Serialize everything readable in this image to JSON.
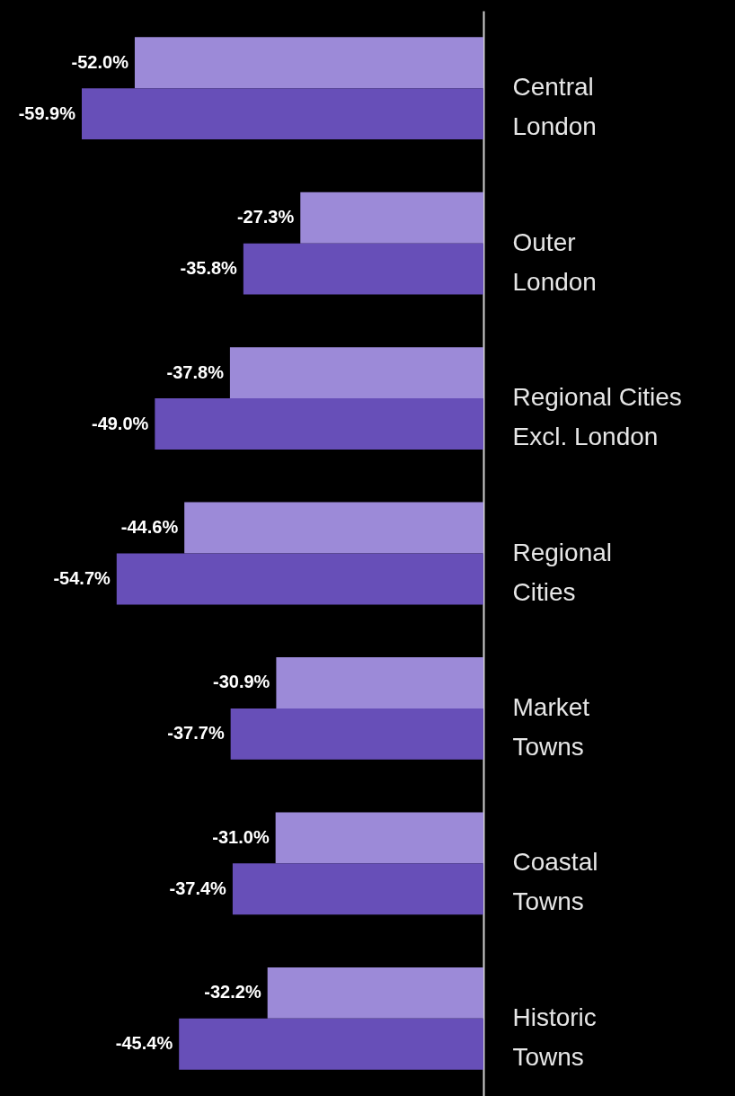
{
  "chart_data": {
    "type": "bar",
    "orientation": "horizontal",
    "legend": false,
    "categories": [
      "Central\nLondon",
      "Outer\nLondon",
      "Regional Cities\nExcl. London",
      "Regional\nCities",
      "Market\nTowns",
      "Coastal\nTowns",
      "Historic\nTowns"
    ],
    "series": [
      {
        "color": "#9c8ad8",
        "values": [
          -52.0,
          -27.3,
          -37.8,
          -44.6,
          -30.9,
          -31.0,
          -32.2
        ],
        "value_labels": [
          "-52.0%",
          "-27.3%",
          "-37.8%",
          "-44.6%",
          "-30.9%",
          "-31.0%",
          "-32.2%"
        ]
      },
      {
        "color": "#674fb8",
        "values": [
          -59.9,
          -35.8,
          -49.0,
          -54.7,
          -37.7,
          -37.4,
          -45.4
        ],
        "value_labels": [
          "-59.9%",
          "-35.8%",
          "-49.0%",
          "-54.7%",
          "-37.7%",
          "-37.4%",
          "-45.4%"
        ]
      }
    ]
  }
}
